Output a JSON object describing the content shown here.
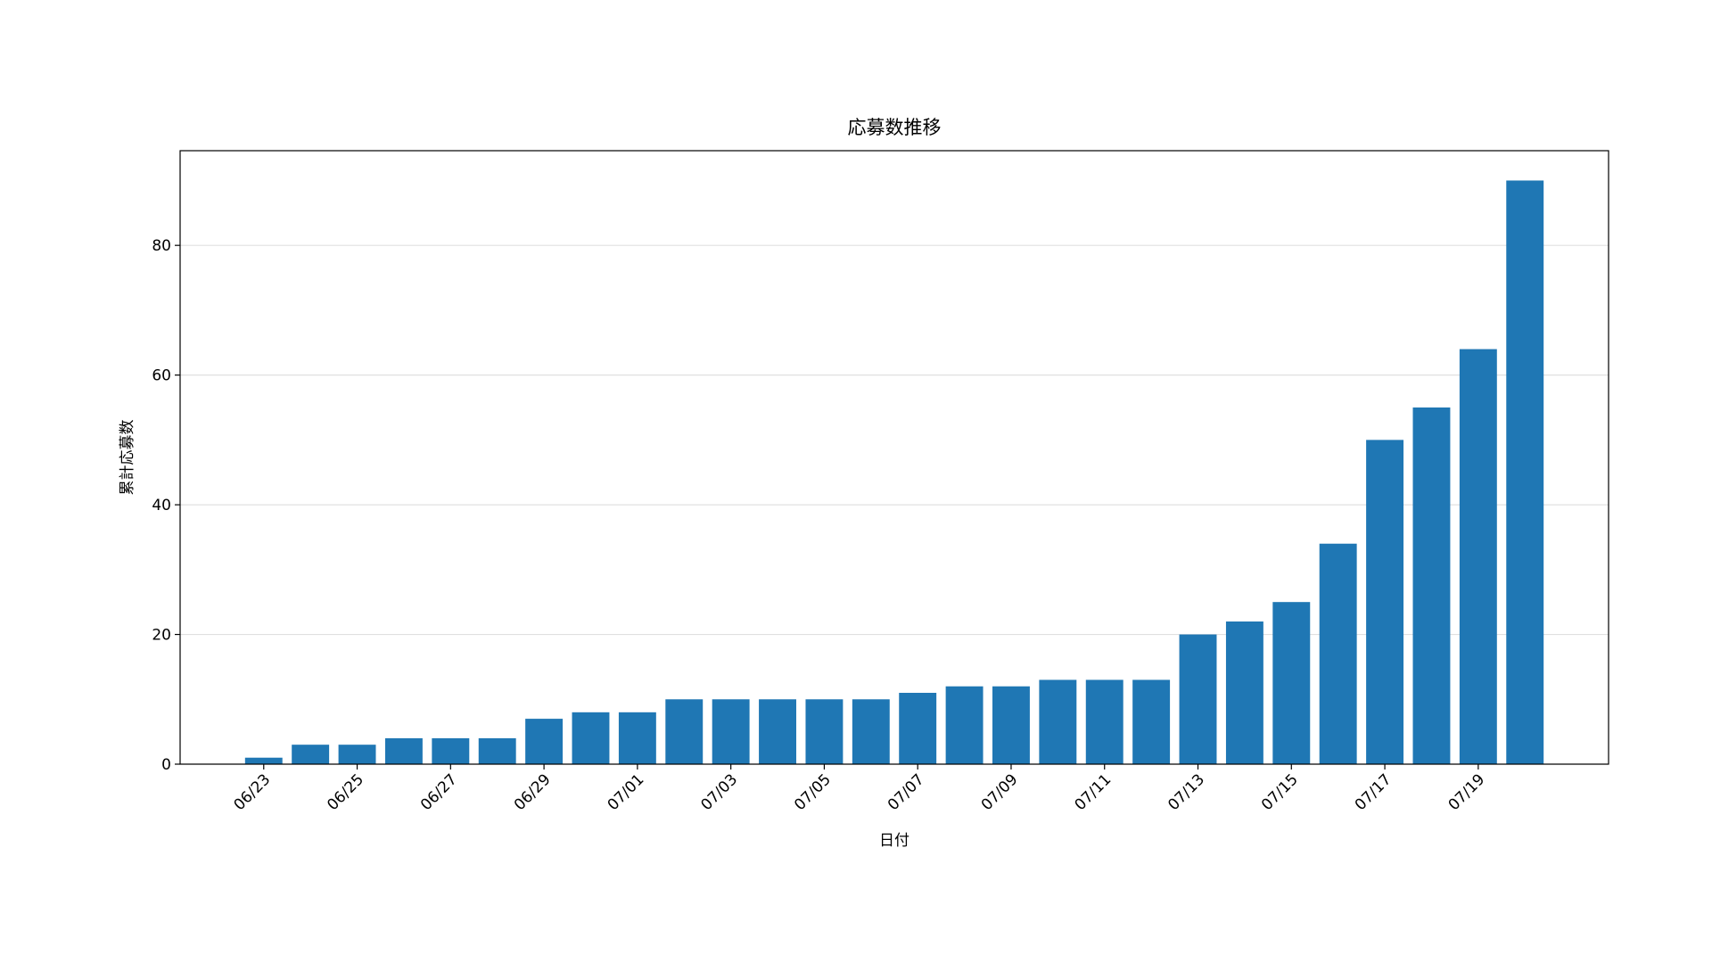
{
  "chart_data": {
    "type": "bar",
    "title": "応募数推移",
    "x_label": "日付",
    "y_label": "累計応募数",
    "categories": [
      "06/23",
      null,
      "06/25",
      null,
      "06/27",
      null,
      "06/29",
      null,
      "07/01",
      null,
      "07/03",
      null,
      "07/05",
      null,
      "07/07",
      null,
      "07/09",
      null,
      "07/11",
      null,
      "07/13",
      null,
      "07/15",
      null,
      "07/17",
      null,
      "07/19",
      null
    ],
    "values": [
      1,
      3,
      3,
      4,
      4,
      4,
      7,
      8,
      8,
      10,
      10,
      10,
      10,
      10,
      11,
      12,
      12,
      13,
      13,
      13,
      20,
      22,
      25,
      34,
      50,
      55,
      64,
      90
    ],
    "color": "#1f77b4",
    "ylim": [
      0,
      94.6
    ],
    "yticks": [
      0,
      20,
      40,
      60,
      80
    ],
    "grid": true
  }
}
